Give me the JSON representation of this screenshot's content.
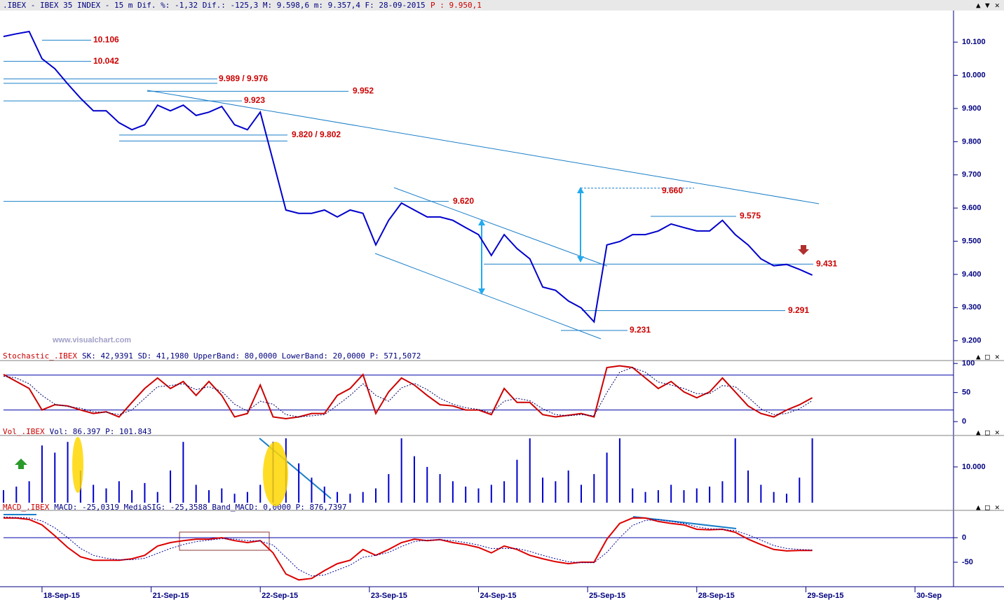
{
  "header": {
    "text": ".IBEX - IBEX 35 INDEX -  15 m Dif. %: -1,32 Dif.: -125,3 M: 9.598,6 m: 9.357,4 F: 28-09-2015",
    "price": "P : 9.950,1"
  },
  "watermark": "www.visualchart.com",
  "chart_data": [
    {
      "type": "line",
      "x": [
        0,
        4,
        8,
        12,
        16,
        20,
        24,
        28,
        32,
        36,
        40,
        44,
        48,
        52,
        56,
        60,
        64,
        68,
        72,
        76,
        80,
        84,
        88,
        92,
        96,
        100,
        104,
        108,
        112,
        116,
        120,
        124,
        128,
        132,
        136,
        140,
        144,
        148,
        152,
        156,
        160,
        164,
        168,
        172,
        176,
        180,
        184,
        188,
        192,
        196,
        200,
        204,
        208,
        212,
        216,
        220,
        224,
        228,
        232,
        236,
        240,
        244,
        248,
        252
      ],
      "xlim": [
        0,
        296
      ],
      "ylim": [
        9172,
        10189
      ],
      "yticks": [
        {
          "value": 9200,
          "label": "9.200"
        },
        {
          "value": 9300,
          "label": "9.300"
        },
        {
          "value": 9400,
          "label": "9.400"
        },
        {
          "value": 9500,
          "label": "9.500"
        },
        {
          "value": 9600,
          "label": "9.600"
        },
        {
          "value": 9700,
          "label": "9.700"
        },
        {
          "value": 9800,
          "label": "9.800"
        },
        {
          "value": 9900,
          "label": "9.900"
        },
        {
          "value": 10000,
          "label": "10.000"
        },
        {
          "value": 10100,
          "label": "10.100"
        }
      ],
      "series": [
        {
          "color": "#0000cc",
          "values": [
            10117,
            10125,
            10132,
            10050,
            10020,
            9974,
            9931,
            9893,
            9893,
            9857,
            9836,
            9851,
            9910,
            9893,
            9910,
            9879,
            9889,
            9906,
            9851,
            9836,
            9889,
            9742,
            9594,
            9584,
            9584,
            9594,
            9573,
            9594,
            9584,
            9489,
            9563,
            9615,
            9594,
            9573,
            9573,
            9563,
            9541,
            9520,
            9457,
            9520,
            9478,
            9447,
            9362,
            9352,
            9320,
            9299,
            9257,
            9489,
            9499,
            9520,
            9520,
            9531,
            9552,
            9541,
            9531,
            9531,
            9563,
            9520,
            9489,
            9447,
            9426,
            9430,
            9415,
            9398
          ]
        }
      ],
      "annotations": [
        {
          "label": "10.106",
          "values": [
            10106
          ]
        },
        {
          "label": "10.042",
          "values": [
            10042
          ]
        },
        {
          "label": "9.989 / 9.976",
          "values": [
            9989,
            9976
          ]
        },
        {
          "label": "9.952",
          "values": [
            9952
          ]
        },
        {
          "label": "9.923",
          "values": [
            9923
          ]
        },
        {
          "label": "9.820 / 9.802",
          "values": [
            9820,
            9802
          ]
        },
        {
          "label": "9.620",
          "values": [
            9620
          ]
        },
        {
          "label": "9.660",
          "values": [
            9660
          ]
        },
        {
          "label": "9.575",
          "values": [
            9575
          ]
        },
        {
          "label": "9.431",
          "values": [
            9431
          ]
        },
        {
          "label": "9.291",
          "values": [
            9291
          ]
        },
        {
          "label": "9.231",
          "values": [
            9231
          ]
        }
      ]
    },
    {
      "type": "line",
      "title": "Stochastic_.IBEX",
      "subtitle": "SK: 42,9391 SD: 41,1980 UpperBand: 80,0000 LowerBand: 20,0000 P: 571,5072",
      "x": [
        0,
        4,
        8,
        12,
        16,
        20,
        24,
        28,
        32,
        36,
        40,
        44,
        48,
        52,
        56,
        60,
        64,
        68,
        72,
        76,
        80,
        84,
        88,
        92,
        96,
        100,
        104,
        108,
        112,
        116,
        120,
        124,
        128,
        132,
        136,
        140,
        144,
        148,
        152,
        156,
        160,
        164,
        168,
        172,
        176,
        180,
        184,
        188,
        192,
        196,
        200,
        204,
        208,
        212,
        216,
        220,
        224,
        228,
        232,
        236,
        240,
        244,
        248,
        252
      ],
      "xlim": [
        0,
        296
      ],
      "ylim": [
        -7,
        105
      ],
      "yticks": [
        0,
        50,
        100
      ],
      "hlines": [
        80,
        20
      ],
      "series": [
        {
          "color": "#cc0000",
          "values": [
            81,
            69,
            57,
            20,
            29,
            27,
            20,
            14,
            17,
            8,
            33,
            57,
            75,
            57,
            69,
            45,
            69,
            45,
            8,
            14,
            63,
            8,
            5,
            8,
            14,
            14,
            45,
            57,
            81,
            14,
            51,
            75,
            63,
            45,
            29,
            27,
            20,
            20,
            12,
            57,
            33,
            33,
            12,
            8,
            11,
            14,
            8,
            93,
            96,
            93,
            75,
            57,
            69,
            51,
            41,
            51,
            75,
            51,
            27,
            14,
            8,
            20,
            29,
            41
          ]
        },
        {
          "color": "#000066",
          "dashed": true,
          "values": [
            78,
            75,
            65,
            45,
            30,
            26,
            23,
            17,
            16,
            12,
            20,
            40,
            60,
            62,
            65,
            55,
            60,
            52,
            30,
            18,
            35,
            30,
            12,
            8,
            10,
            12,
            28,
            45,
            65,
            45,
            35,
            58,
            66,
            55,
            40,
            30,
            24,
            21,
            15,
            35,
            40,
            36,
            22,
            12,
            10,
            12,
            10,
            50,
            85,
            93,
            85,
            68,
            63,
            57,
            48,
            48,
            62,
            60,
            42,
            22,
            12,
            14,
            22,
            36
          ]
        }
      ]
    },
    {
      "type": "bar",
      "title": "Vol_.IBEX",
      "subtitle": "Vol: 86.397 P: 101.843",
      "x": [
        0,
        4,
        8,
        12,
        16,
        20,
        24,
        28,
        32,
        36,
        40,
        44,
        48,
        52,
        56,
        60,
        64,
        68,
        72,
        76,
        80,
        84,
        88,
        92,
        96,
        100,
        104,
        108,
        112,
        116,
        120,
        124,
        128,
        132,
        136,
        140,
        144,
        148,
        152,
        156,
        160,
        164,
        168,
        172,
        176,
        180,
        184,
        188,
        192,
        196,
        200,
        204,
        208,
        212,
        216,
        220,
        224,
        228,
        232,
        236,
        240,
        244,
        248,
        252
      ],
      "xlim": [
        0,
        296
      ],
      "ylim": [
        0,
        18600
      ],
      "yticks": [
        {
          "value": 10000,
          "label": "10.000"
        }
      ],
      "series": [
        {
          "color": "#0000cc",
          "values": [
            3500,
            4500,
            6000,
            16000,
            14000,
            17000,
            9000,
            5000,
            4000,
            6000,
            3500,
            5500,
            3000,
            9000,
            17000,
            5000,
            3500,
            4000,
            2500,
            3000,
            5000,
            17000,
            18000,
            11000,
            7000,
            4500,
            3000,
            2500,
            3000,
            4000,
            8000,
            18000,
            13000,
            10000,
            8000,
            6000,
            4500,
            4000,
            5000,
            6000,
            12000,
            18000,
            7000,
            6000,
            9000,
            5000,
            8000,
            14000,
            18000,
            4000,
            3000,
            3500,
            5000,
            3500,
            4000,
            4500,
            6000,
            18000,
            9000,
            5000,
            3000,
            2500,
            7000,
            18000
          ]
        }
      ]
    },
    {
      "type": "line",
      "title": "MACD_.IBEX",
      "subtitle": "MACD: -25,0319 MediaSIG: -25,3588 Band_MACD: 0,0000 P: 876,7397",
      "x": [
        0,
        4,
        8,
        12,
        16,
        20,
        24,
        28,
        32,
        36,
        40,
        44,
        48,
        52,
        56,
        60,
        64,
        68,
        72,
        76,
        80,
        84,
        88,
        92,
        96,
        100,
        104,
        108,
        112,
        116,
        120,
        124,
        128,
        132,
        136,
        140,
        144,
        148,
        152,
        156,
        160,
        164,
        168,
        172,
        176,
        180,
        184,
        188,
        192,
        196,
        200,
        204,
        208,
        212,
        216,
        220,
        224,
        228,
        232,
        236,
        240,
        244,
        248,
        252
      ],
      "xlim": [
        0,
        296
      ],
      "ylim": [
        -97,
        47
      ],
      "yticks": [
        0,
        -50
      ],
      "hlines": [
        0
      ],
      "xticks": [
        {
          "value": 12,
          "label": "18-Sep-15"
        },
        {
          "value": 46,
          "label": "21-Sep-15"
        },
        {
          "value": 80,
          "label": "22-Sep-15"
        },
        {
          "value": 114,
          "label": "23-Sep-15"
        },
        {
          "value": 148,
          "label": "24-Sep-15"
        },
        {
          "value": 182,
          "label": "25-Sep-15"
        },
        {
          "value": 216,
          "label": "28-Sep-15"
        },
        {
          "value": 250,
          "label": "29-Sep-15"
        },
        {
          "value": 284,
          "label": "30-Sep"
        }
      ],
      "series": [
        {
          "color": "#dd0000",
          "values": [
            40,
            40,
            37,
            26,
            4,
            -20,
            -39,
            -46,
            -46,
            -46,
            -43,
            -36,
            -17,
            -10,
            -6,
            -3,
            -3,
            0,
            -6,
            -10,
            -6,
            -31,
            -74,
            -86,
            -83,
            -67,
            -53,
            -46,
            -24,
            -36,
            -24,
            -10,
            -3,
            -6,
            -4,
            -10,
            -14,
            -20,
            -31,
            -17,
            -24,
            -36,
            -43,
            -49,
            -53,
            -50,
            -50,
            -3,
            29,
            40,
            40,
            33,
            29,
            26,
            17,
            16,
            17,
            11,
            -3,
            -14,
            -24,
            -27,
            -26,
            -26
          ]
        },
        {
          "color": "#000099",
          "dashed": true,
          "values": [
            42,
            41,
            40,
            34,
            20,
            0,
            -22,
            -36,
            -42,
            -45,
            -45,
            -42,
            -32,
            -22,
            -14,
            -8,
            -5,
            -2,
            -3,
            -6,
            -7,
            -15,
            -40,
            -65,
            -78,
            -76,
            -66,
            -56,
            -40,
            -36,
            -30,
            -18,
            -8,
            -5,
            -4,
            -6,
            -10,
            -15,
            -22,
            -22,
            -22,
            -28,
            -36,
            -43,
            -49,
            -51,
            -51,
            -30,
            0,
            25,
            35,
            37,
            33,
            29,
            22,
            18,
            17,
            14,
            6,
            -5,
            -16,
            -22,
            -24,
            -25
          ]
        }
      ]
    }
  ]
}
